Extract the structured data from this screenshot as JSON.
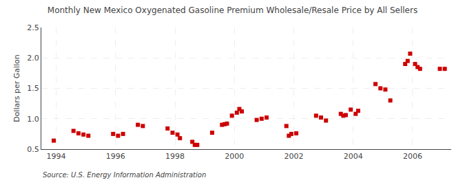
{
  "chart_data": {
    "type": "scatter",
    "title": "Monthly New Mexico Oxygenated Gasoline Premium Wholesale/Resale Price by All Sellers",
    "y_label": "Dollars per Gallon",
    "source": "Source: U.S. Energy Information Administration",
    "color": "#cc0000",
    "marker": "square",
    "grid": true,
    "xlim": [
      1993.5,
      2007.3
    ],
    "xticks": [
      1994,
      1996,
      1998,
      2000,
      2002,
      2004,
      2006
    ],
    "ylim": [
      0.5,
      2.5
    ],
    "yticks": [
      0.5,
      {
        "value": 1.0,
        "label": "1.0"
      },
      1.5,
      {
        "value": 2.0,
        "label": "2.0"
      },
      2.5
    ],
    "x": [
      1993.917,
      1994.583,
      1994.75,
      1994.917,
      1995.083,
      1995.917,
      1996.083,
      1996.25,
      1996.75,
      1996.917,
      1997.75,
      1997.917,
      1998.083,
      1998.167,
      1998.583,
      1998.667,
      1998.75,
      1999.25,
      1999.583,
      1999.667,
      1999.75,
      1999.917,
      2000.083,
      2000.167,
      2000.25,
      2000.75,
      2000.917,
      2001.083,
      2001.75,
      2001.833,
      2001.917,
      2002.083,
      2002.75,
      2002.917,
      2003.083,
      2003.583,
      2003.667,
      2003.75,
      2003.917,
      2004.083,
      2004.167,
      2004.75,
      2004.917,
      2005.083,
      2005.25,
      2005.75,
      2005.833,
      2005.917,
      2006.083,
      2006.167,
      2006.25,
      2006.917,
      2007.083
    ],
    "values": [
      0.64,
      0.8,
      0.76,
      0.74,
      0.72,
      0.75,
      0.72,
      0.75,
      0.9,
      0.88,
      0.84,
      0.77,
      0.74,
      0.68,
      0.62,
      0.57,
      0.57,
      0.77,
      0.9,
      0.91,
      0.92,
      1.05,
      1.1,
      1.16,
      1.12,
      0.98,
      1.0,
      1.02,
      0.88,
      0.72,
      0.75,
      0.76,
      1.05,
      1.02,
      0.97,
      1.08,
      1.05,
      1.06,
      1.15,
      1.08,
      1.13,
      1.57,
      1.5,
      1.48,
      1.3,
      1.9,
      1.95,
      2.07,
      1.9,
      1.85,
      1.82,
      1.82,
      1.82
    ]
  }
}
